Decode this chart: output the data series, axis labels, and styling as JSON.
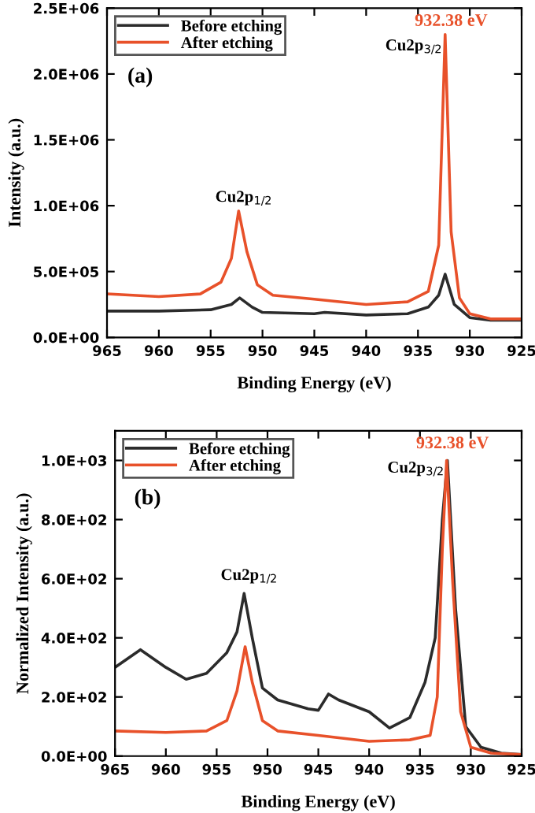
{
  "chart_data": [
    {
      "type": "line",
      "xlabel": "Binding Energy (eV)",
      "ylabel": "Intensity (a.u.)",
      "legend": "top left",
      "grid": false,
      "xlim": [
        965,
        925
      ],
      "xticks": [
        965,
        960,
        955,
        950,
        945,
        940,
        935,
        930,
        925
      ],
      "ylim": [
        0,
        2500000
      ],
      "yticks": [
        {
          "value": 0,
          "label": "0.0E+00"
        },
        {
          "value": 500000,
          "label": "5.0E+05"
        },
        {
          "value": 1000000,
          "label": "1.0E+06"
        },
        {
          "value": 1500000,
          "label": "1.5E+06"
        },
        {
          "value": 2000000,
          "label": "2.0E+06"
        },
        {
          "value": 2500000,
          "label": "2.5E+06"
        }
      ],
      "series": [
        {
          "name": "Before etching",
          "color": "#2b2b2b",
          "x": [
            965,
            960,
            955,
            953,
            952.2,
            951,
            950,
            945,
            944,
            940,
            936,
            934,
            933,
            932.38,
            931.5,
            930,
            928,
            925
          ],
          "values": [
            200000,
            200000,
            210000,
            250000,
            300000,
            230000,
            190000,
            180000,
            190000,
            170000,
            180000,
            230000,
            320000,
            480000,
            250000,
            150000,
            130000,
            130000
          ]
        },
        {
          "name": "After etching",
          "color": "#e8512a",
          "x": [
            965,
            960,
            956,
            954,
            953,
            952.3,
            951.5,
            950.5,
            949,
            945,
            940,
            936,
            934,
            933,
            932.38,
            931.8,
            931,
            930,
            928,
            925
          ],
          "values": [
            330000,
            310000,
            330000,
            420000,
            600000,
            960000,
            650000,
            400000,
            320000,
            290000,
            250000,
            270000,
            350000,
            700000,
            2300000,
            800000,
            300000,
            180000,
            140000,
            140000
          ]
        }
      ],
      "annotations": [
        "(a)",
        "Cu2p$_{1/2}$",
        "Cu2p$_{3/2}$",
        "932.38 eV"
      ]
    },
    {
      "type": "line",
      "xlabel": "Binding Energy (eV)",
      "ylabel": "Normalized Intensity (a.u.)",
      "legend": "top left",
      "grid": false,
      "xlim": [
        965,
        925
      ],
      "xticks": [
        965,
        960,
        955,
        950,
        945,
        940,
        935,
        930,
        925
      ],
      "ylim": [
        0,
        1100
      ],
      "yticks": [
        {
          "value": 0,
          "label": "0.0E+00"
        },
        {
          "value": 200,
          "label": "2.0E+02"
        },
        {
          "value": 400,
          "label": "4.0E+02"
        },
        {
          "value": 600,
          "label": "6.0E+02"
        },
        {
          "value": 800,
          "label": "8.0E+02"
        },
        {
          "value": 1000,
          "label": "1.0E+03"
        }
      ],
      "series": [
        {
          "name": "Before etching",
          "color": "#2b2b2b",
          "x": [
            965,
            962.5,
            960,
            958,
            956,
            954,
            953,
            952.3,
            951.5,
            950.5,
            949,
            946,
            945,
            944,
            943,
            940,
            938,
            936,
            934.5,
            933.5,
            932.8,
            932.3,
            931.5,
            930.5,
            929,
            927,
            925
          ],
          "values": [
            300,
            360,
            300,
            260,
            280,
            350,
            420,
            550,
            400,
            230,
            190,
            160,
            155,
            210,
            190,
            150,
            95,
            130,
            250,
            400,
            800,
            1000,
            500,
            100,
            30,
            10,
            5
          ]
        },
        {
          "name": "After etching",
          "color": "#e8512a",
          "x": [
            965,
            960,
            956,
            954,
            953,
            952.2,
            951.5,
            950.5,
            949,
            945,
            940,
            936,
            934,
            933.3,
            932.8,
            932.38,
            931.8,
            931,
            930,
            928,
            925
          ],
          "values": [
            85,
            80,
            85,
            120,
            220,
            370,
            250,
            120,
            85,
            70,
            50,
            55,
            70,
            200,
            700,
            1000,
            600,
            150,
            30,
            10,
            5
          ]
        }
      ],
      "annotations": [
        "(b)",
        "Cu2p$_{1/2}$",
        "Cu2p$_{3/2}$",
        "932.38 eV"
      ]
    }
  ]
}
